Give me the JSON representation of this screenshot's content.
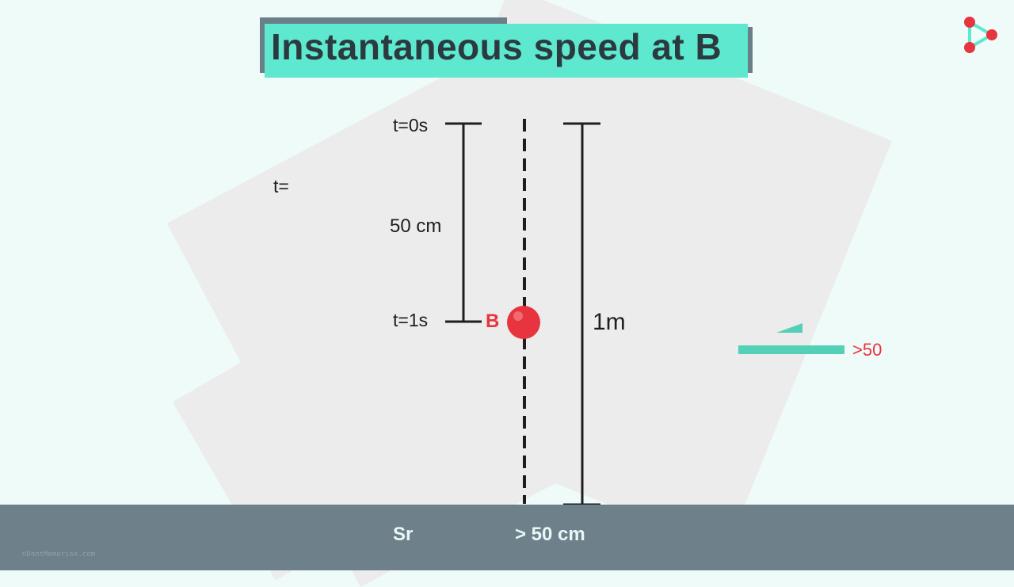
{
  "title": "Instantaneous speed at B",
  "diagram": {
    "start_time_label": "t=0s",
    "mid_time_label": "t=1s",
    "distance_label": "50 cm",
    "total_distance_label": "1m",
    "point_label": "B",
    "partial_time_label": "t=",
    "side_value_label": ">50"
  },
  "footer": {
    "left_text": "Sr",
    "right_text": "> 50 cm",
    "credit": "©DontMemorise.com"
  },
  "colors": {
    "accent": "#5ee8cf",
    "ball": "#e8343f",
    "footer": "#6e818b",
    "title_text": "#2b3a3f"
  },
  "icons": [
    "play-logo-icon"
  ]
}
